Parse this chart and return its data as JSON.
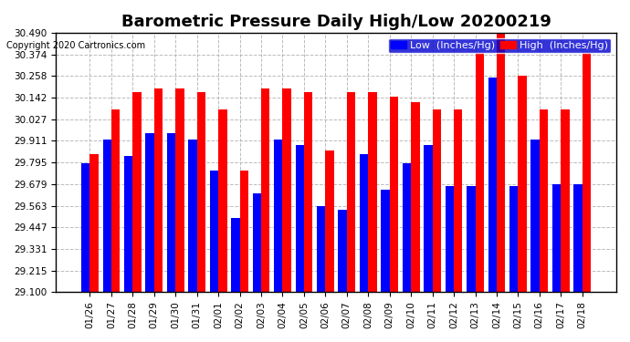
{
  "title": "Barometric Pressure Daily High/Low 20200219",
  "copyright": "Copyright 2020 Cartronics.com",
  "legend_low": "Low  (Inches/Hg)",
  "legend_high": "High  (Inches/Hg)",
  "dates": [
    "01/26",
    "01/27",
    "01/28",
    "01/29",
    "01/30",
    "01/31",
    "02/01",
    "02/02",
    "02/03",
    "02/04",
    "02/05",
    "02/06",
    "02/07",
    "02/08",
    "02/09",
    "02/10",
    "02/11",
    "02/12",
    "02/13",
    "02/14",
    "02/15",
    "02/16",
    "02/17",
    "02/18"
  ],
  "high": [
    29.84,
    30.08,
    30.17,
    30.19,
    30.19,
    30.17,
    30.08,
    29.75,
    30.19,
    30.19,
    30.17,
    29.86,
    30.17,
    30.17,
    30.15,
    30.12,
    30.08,
    30.08,
    30.38,
    30.49,
    30.26,
    30.08,
    30.08,
    30.38
  ],
  "low": [
    29.79,
    29.92,
    29.83,
    29.95,
    29.95,
    29.92,
    29.75,
    29.5,
    29.63,
    29.92,
    29.89,
    29.56,
    29.54,
    29.84,
    29.65,
    29.79,
    29.89,
    29.67,
    29.67,
    30.25,
    29.67,
    29.92,
    29.68,
    29.68
  ],
  "ylim_min": 29.1,
  "ylim_max": 30.49,
  "yticks": [
    29.1,
    29.215,
    29.331,
    29.447,
    29.563,
    29.679,
    29.795,
    29.911,
    30.027,
    30.142,
    30.258,
    30.374,
    30.49
  ],
  "bar_color_low": "#0000ff",
  "bar_color_high": "#ff0000",
  "bg_color": "#ffffff",
  "grid_color": "#aaaaaa",
  "title_fontsize": 13,
  "tick_fontsize": 7.5,
  "legend_fontsize": 8
}
